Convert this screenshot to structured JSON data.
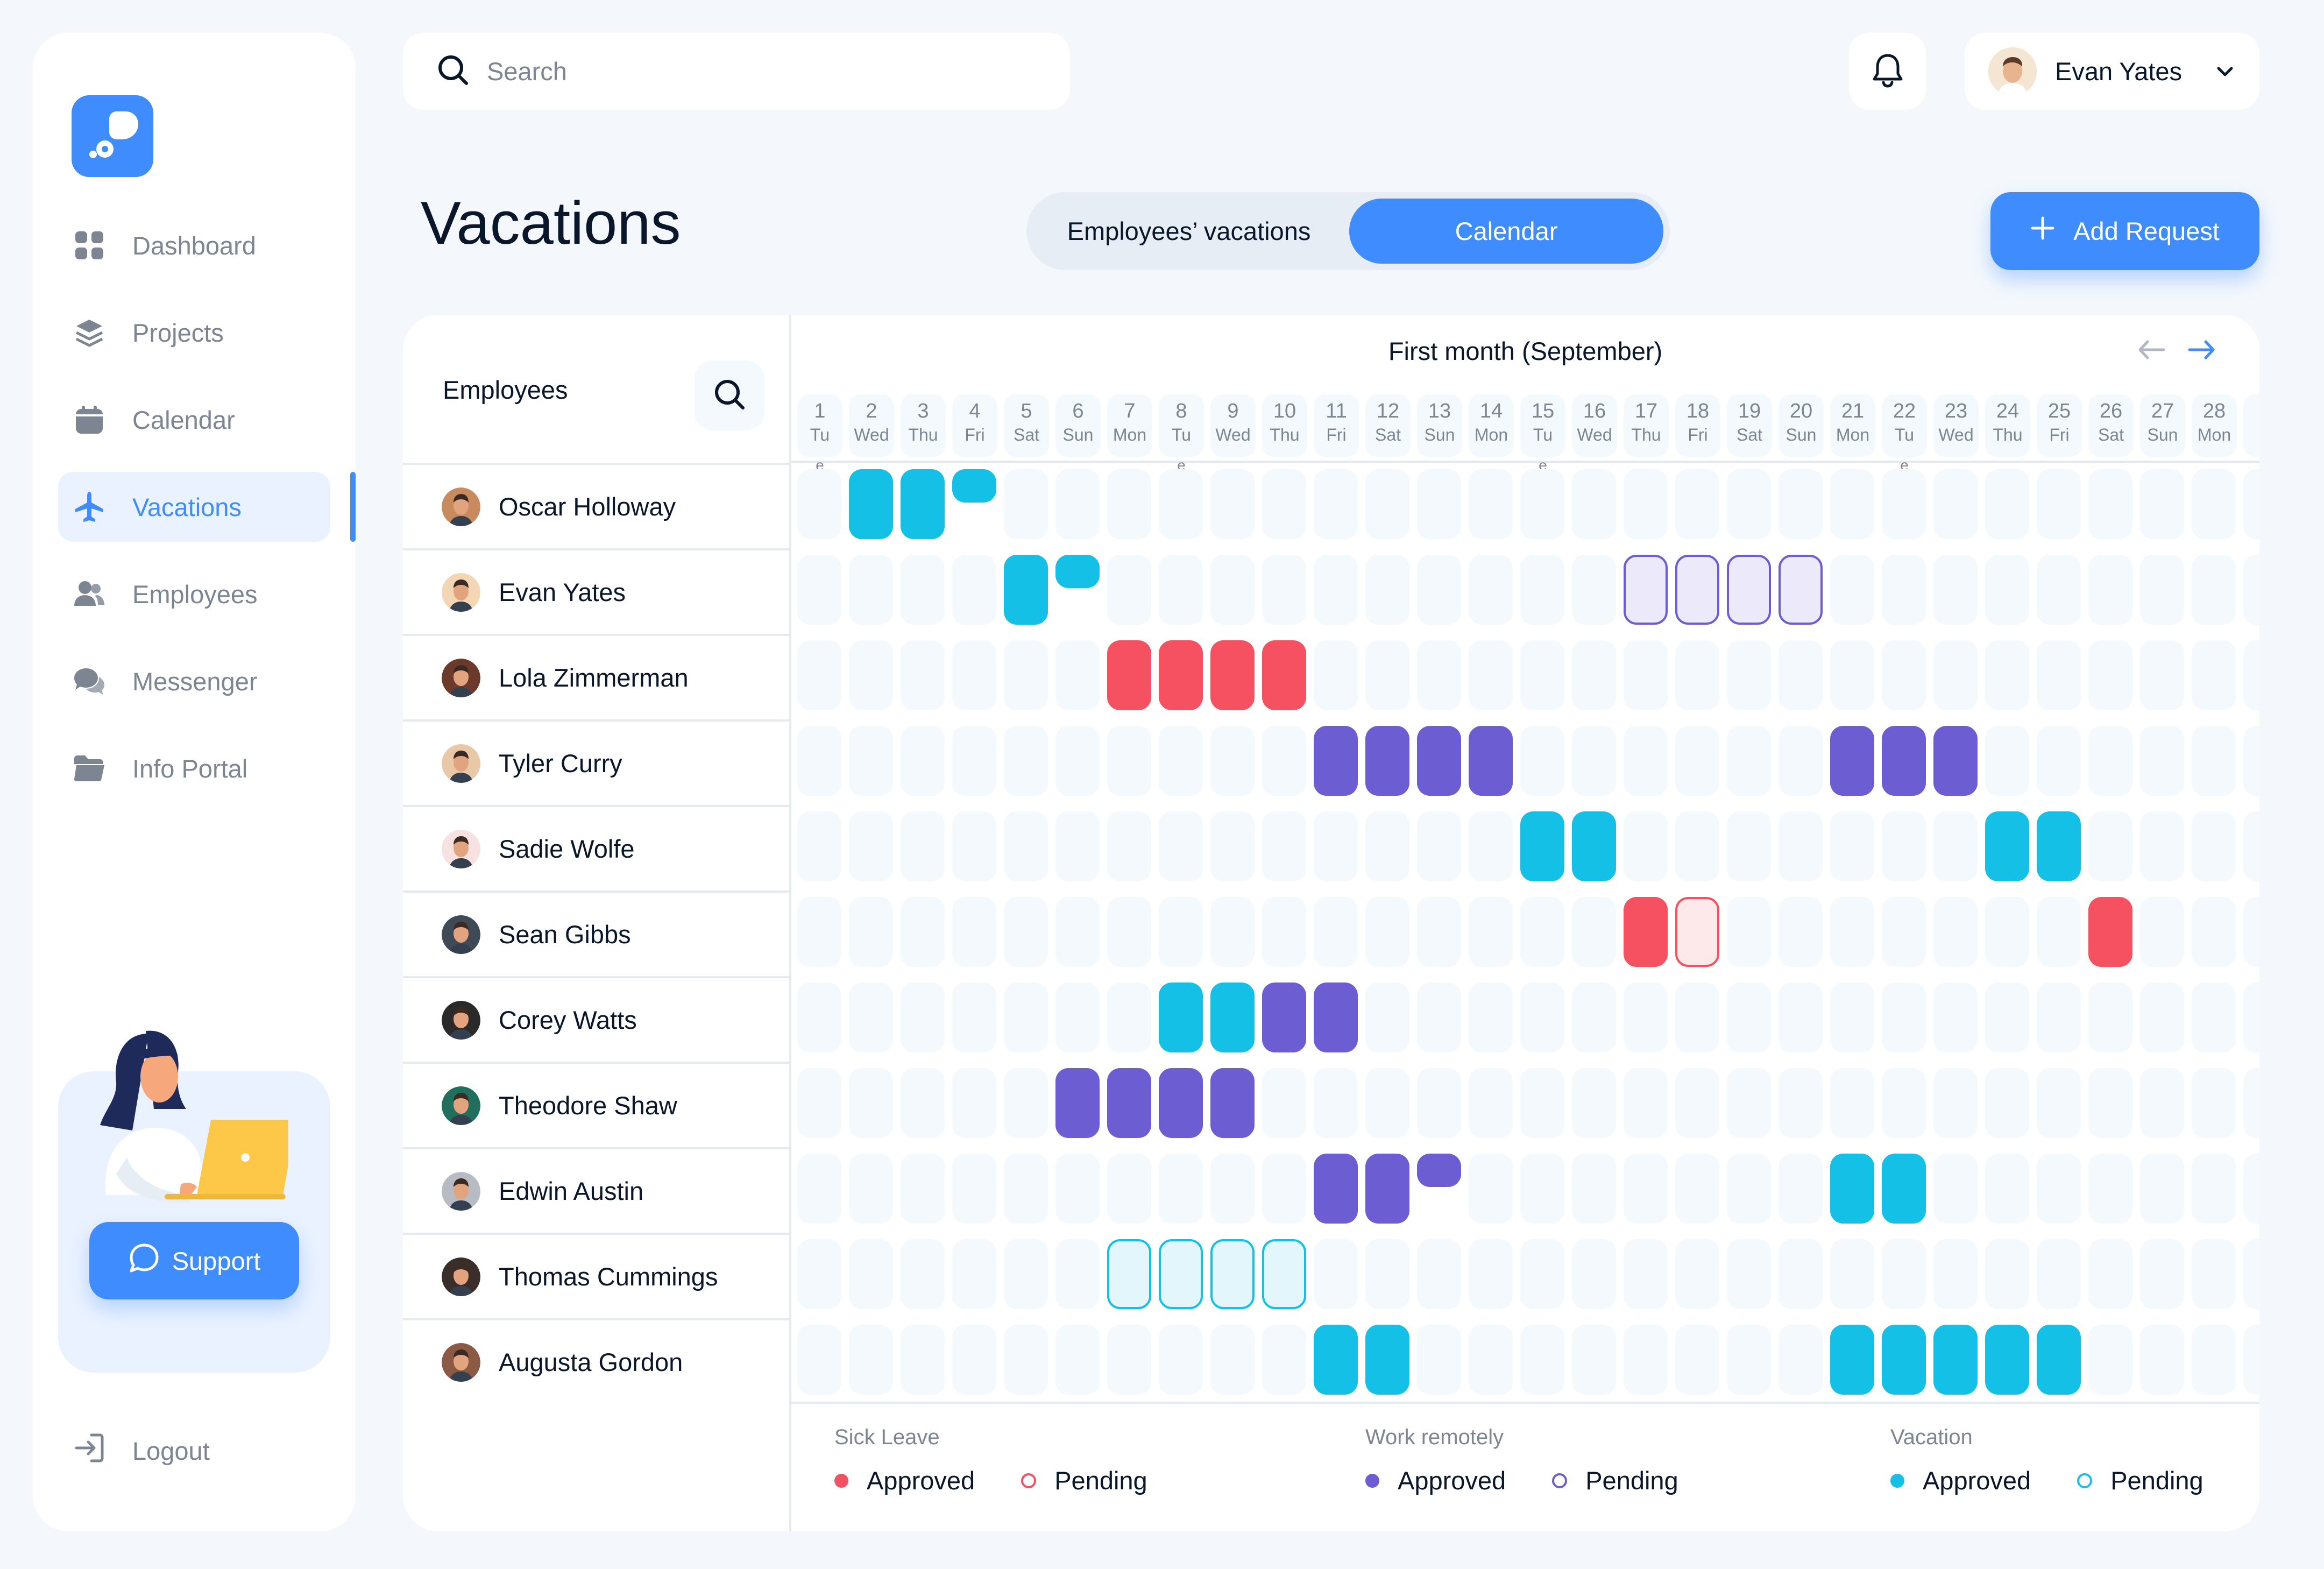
{
  "sidebar": {
    "nav": [
      {
        "label": "Dashboard",
        "icon": "dashboard-icon"
      },
      {
        "label": "Projects",
        "icon": "layers-icon"
      },
      {
        "label": "Calendar",
        "icon": "calendar-icon"
      },
      {
        "label": "Vacations",
        "icon": "airplane-icon",
        "active": true
      },
      {
        "label": "Employees",
        "icon": "users-icon"
      },
      {
        "label": "Messenger",
        "icon": "chat-icon"
      },
      {
        "label": "Info Portal",
        "icon": "folder-icon"
      }
    ],
    "support_label": "Support",
    "logout_label": "Logout"
  },
  "header": {
    "search_placeholder": "Search",
    "user_name": "Evan Yates"
  },
  "page": {
    "title": "Vacations",
    "toggle": [
      "Employees’ vacations",
      "Calendar"
    ],
    "add_request_label": "Add Request"
  },
  "employees_header": "Employees",
  "calendar": {
    "month_title": "First month (September)",
    "days": [
      {
        "n": "1",
        "d": "Tu"
      },
      {
        "n": "2",
        "d": "Wed"
      },
      {
        "n": "3",
        "d": "Thu"
      },
      {
        "n": "4",
        "d": "Fri"
      },
      {
        "n": "5",
        "d": "Sat"
      },
      {
        "n": "6",
        "d": "Sun"
      },
      {
        "n": "7",
        "d": "Mon"
      },
      {
        "n": "8",
        "d": "Tu"
      },
      {
        "n": "9",
        "d": "Wed"
      },
      {
        "n": "10",
        "d": "Thu"
      },
      {
        "n": "11",
        "d": "Fri"
      },
      {
        "n": "12",
        "d": "Sat"
      },
      {
        "n": "13",
        "d": "Sun"
      },
      {
        "n": "14",
        "d": "Mon"
      },
      {
        "n": "15",
        "d": "Tu"
      },
      {
        "n": "16",
        "d": "Wed"
      },
      {
        "n": "17",
        "d": "Thu"
      },
      {
        "n": "18",
        "d": "Fri"
      },
      {
        "n": "19",
        "d": "Sat"
      },
      {
        "n": "20",
        "d": "Sun"
      },
      {
        "n": "21",
        "d": "Mon"
      },
      {
        "n": "22",
        "d": "Tu"
      },
      {
        "n": "23",
        "d": "Wed"
      },
      {
        "n": "24",
        "d": "Thu"
      },
      {
        "n": "25",
        "d": "Fri"
      },
      {
        "n": "26",
        "d": "Sat"
      },
      {
        "n": "27",
        "d": "Sun"
      },
      {
        "n": "28",
        "d": "Mon"
      }
    ],
    "day_suffix": "e",
    "suffix_days": [
      1,
      8,
      15,
      22
    ]
  },
  "colors": {
    "accent": "#3F8CFF",
    "sick_leave": "#F65160",
    "work_remotely": "#6D5DD3",
    "vacation": "#15C0E6"
  },
  "employees": [
    {
      "name": "Oscar Holloway",
      "avatar_bg": "#C98B5E",
      "entries": [
        {
          "d": 2,
          "t": "vc-approved"
        },
        {
          "d": 3,
          "t": "vc-approved"
        },
        {
          "d": 4,
          "t": "vc-approved",
          "half": true
        }
      ]
    },
    {
      "name": "Evan Yates",
      "avatar_bg": "#F3D6B3",
      "entries": [
        {
          "d": 5,
          "t": "vc-approved"
        },
        {
          "d": 6,
          "t": "vc-approved",
          "half": true
        },
        {
          "d": 17,
          "t": "wr-pending"
        },
        {
          "d": 18,
          "t": "wr-pending"
        },
        {
          "d": 19,
          "t": "wr-pending"
        },
        {
          "d": 20,
          "t": "wr-pending"
        }
      ]
    },
    {
      "name": "Lola Zimmerman",
      "avatar_bg": "#6B3A2A",
      "entries": [
        {
          "d": 7,
          "t": "sl-approved"
        },
        {
          "d": 8,
          "t": "sl-approved"
        },
        {
          "d": 9,
          "t": "sl-approved"
        },
        {
          "d": 10,
          "t": "sl-approved"
        }
      ]
    },
    {
      "name": "Tyler Curry",
      "avatar_bg": "#E9C8A8",
      "entries": [
        {
          "d": 11,
          "t": "wr-approved"
        },
        {
          "d": 12,
          "t": "wr-approved"
        },
        {
          "d": 13,
          "t": "wr-approved"
        },
        {
          "d": 14,
          "t": "wr-approved"
        },
        {
          "d": 21,
          "t": "wr-approved"
        },
        {
          "d": 22,
          "t": "wr-approved"
        },
        {
          "d": 23,
          "t": "wr-approved"
        }
      ]
    },
    {
      "name": "Sadie Wolfe",
      "avatar_bg": "#F7E1E1",
      "entries": [
        {
          "d": 15,
          "t": "vc-approved"
        },
        {
          "d": 16,
          "t": "vc-approved"
        },
        {
          "d": 24,
          "t": "vc-approved"
        },
        {
          "d": 25,
          "t": "vc-approved"
        }
      ]
    },
    {
      "name": "Sean Gibbs",
      "avatar_bg": "#3E4A55",
      "entries": [
        {
          "d": 17,
          "t": "sl-approved"
        },
        {
          "d": 18,
          "t": "sl-pending"
        },
        {
          "d": 26,
          "t": "sl-approved"
        }
      ]
    },
    {
      "name": "Corey Watts",
      "avatar_bg": "#2A2A2A",
      "entries": [
        {
          "d": 8,
          "t": "vc-approved"
        },
        {
          "d": 9,
          "t": "vc-approved"
        },
        {
          "d": 10,
          "t": "wr-approved"
        },
        {
          "d": 11,
          "t": "wr-approved"
        }
      ]
    },
    {
      "name": "Theodore Shaw",
      "avatar_bg": "#1F6F5C",
      "entries": [
        {
          "d": 6,
          "t": "wr-approved"
        },
        {
          "d": 7,
          "t": "wr-approved"
        },
        {
          "d": 8,
          "t": "wr-approved"
        },
        {
          "d": 9,
          "t": "wr-approved"
        }
      ]
    },
    {
      "name": "Edwin Austin",
      "avatar_bg": "#B7BCC4",
      "entries": [
        {
          "d": 11,
          "t": "wr-approved"
        },
        {
          "d": 12,
          "t": "wr-approved"
        },
        {
          "d": 13,
          "t": "wr-approved",
          "half": true
        },
        {
          "d": 21,
          "t": "vc-approved"
        },
        {
          "d": 22,
          "t": "vc-approved"
        }
      ]
    },
    {
      "name": "Thomas Cummings",
      "avatar_bg": "#3A2E2A",
      "entries": [
        {
          "d": 7,
          "t": "vc-pending"
        },
        {
          "d": 8,
          "t": "vc-pending"
        },
        {
          "d": 9,
          "t": "vc-pending"
        },
        {
          "d": 10,
          "t": "vc-pending"
        }
      ]
    },
    {
      "name": "Augusta Gordon",
      "avatar_bg": "#8C5A44",
      "entries": [
        {
          "d": 11,
          "t": "vc-approved"
        },
        {
          "d": 12,
          "t": "vc-approved"
        },
        {
          "d": 21,
          "t": "vc-approved"
        },
        {
          "d": 22,
          "t": "vc-approved"
        },
        {
          "d": 23,
          "t": "vc-approved"
        },
        {
          "d": 24,
          "t": "vc-approved"
        },
        {
          "d": 25,
          "t": "vc-approved"
        }
      ]
    }
  ],
  "legend": {
    "sick_leave": {
      "title": "Sick Leave",
      "approved": "Approved",
      "pending": "Pending"
    },
    "work_remotely": {
      "title": "Work remotely",
      "approved": "Approved",
      "pending": "Pending"
    },
    "vacation": {
      "title": "Vacation",
      "approved": "Approved",
      "pending": "Pending"
    }
  }
}
